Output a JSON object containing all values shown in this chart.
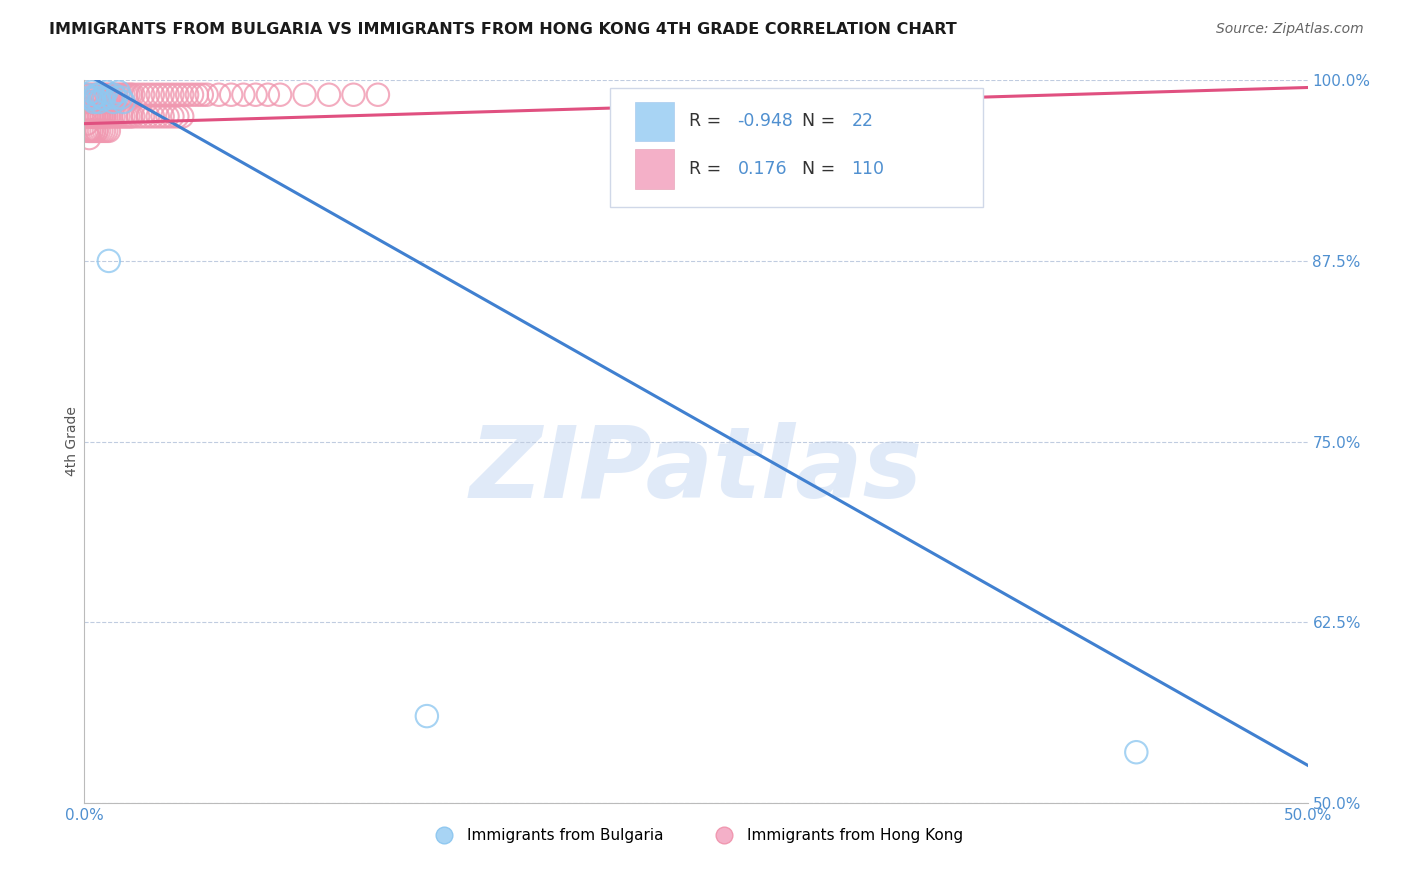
{
  "title": "IMMIGRANTS FROM BULGARIA VS IMMIGRANTS FROM HONG KONG 4TH GRADE CORRELATION CHART",
  "source": "Source: ZipAtlas.com",
  "ylabel": "4th Grade",
  "x_min": 0.0,
  "x_max": 0.5,
  "y_min": 0.5,
  "y_max": 1.0,
  "y_ticks": [
    0.5,
    0.625,
    0.75,
    0.875,
    1.0
  ],
  "y_tick_labels": [
    "50.0%",
    "62.5%",
    "75.0%",
    "87.5%",
    "100.0%"
  ],
  "x_ticks": [
    0.0,
    0.1,
    0.2,
    0.3,
    0.4,
    0.5
  ],
  "x_tick_labels": [
    "0.0%",
    "",
    "",
    "",
    "",
    "50.0%"
  ],
  "bulgaria_edge_color": "#90c8f0",
  "hong_kong_edge_color": "#f098b0",
  "blue_line_color": "#4080d0",
  "pink_line_color": "#e05080",
  "bulgaria_legend_fill": "#a8d4f4",
  "hong_kong_legend_fill": "#f4b0c8",
  "bulgaria_R": -0.948,
  "bulgaria_N": 22,
  "hong_kong_R": 0.176,
  "hong_kong_N": 110,
  "watermark_text": "ZIPatlas",
  "watermark_color": "#c8daf4",
  "grid_color": "#c0cce0",
  "accent_color": "#5090d0",
  "bg_color": "#ffffff",
  "legend_border_color": "#d0d8e8",
  "bulgaria_points_x": [
    0.001,
    0.002,
    0.003,
    0.003,
    0.004,
    0.004,
    0.005,
    0.006,
    0.006,
    0.007,
    0.008,
    0.009,
    0.01,
    0.011,
    0.012,
    0.012,
    0.013,
    0.014,
    0.015,
    0.016,
    0.14,
    0.43
  ],
  "bulgaria_points_y": [
    0.99,
    0.988,
    0.987,
    0.992,
    0.988,
    0.985,
    0.99,
    0.985,
    0.99,
    0.988,
    0.987,
    0.992,
    0.875,
    0.988,
    0.99,
    0.985,
    0.988,
    0.992,
    0.988,
    0.985,
    0.56,
    0.535
  ],
  "hong_kong_points_x": [
    0.001,
    0.001,
    0.001,
    0.002,
    0.002,
    0.002,
    0.002,
    0.002,
    0.003,
    0.003,
    0.003,
    0.003,
    0.004,
    0.004,
    0.004,
    0.004,
    0.005,
    0.005,
    0.005,
    0.005,
    0.006,
    0.006,
    0.006,
    0.007,
    0.007,
    0.007,
    0.008,
    0.008,
    0.008,
    0.009,
    0.009,
    0.01,
    0.01,
    0.011,
    0.011,
    0.012,
    0.012,
    0.013,
    0.014,
    0.015,
    0.016,
    0.017,
    0.018,
    0.019,
    0.02,
    0.022,
    0.024,
    0.026,
    0.028,
    0.03,
    0.032,
    0.034,
    0.036,
    0.038,
    0.04,
    0.042,
    0.044,
    0.046,
    0.048,
    0.05,
    0.055,
    0.06,
    0.065,
    0.07,
    0.075,
    0.08,
    0.09,
    0.1,
    0.11,
    0.12,
    0.001,
    0.001,
    0.002,
    0.002,
    0.003,
    0.003,
    0.004,
    0.004,
    0.005,
    0.005,
    0.006,
    0.006,
    0.007,
    0.007,
    0.008,
    0.008,
    0.009,
    0.009,
    0.01,
    0.01,
    0.011,
    0.012,
    0.013,
    0.014,
    0.015,
    0.016,
    0.017,
    0.018,
    0.019,
    0.02,
    0.022,
    0.024,
    0.026,
    0.028,
    0.03,
    0.032,
    0.034,
    0.036,
    0.038,
    0.04
  ],
  "hong_kong_points_y": [
    0.99,
    0.98,
    0.97,
    0.99,
    0.985,
    0.975,
    0.965,
    0.96,
    0.99,
    0.985,
    0.975,
    0.965,
    0.99,
    0.985,
    0.975,
    0.965,
    0.99,
    0.985,
    0.975,
    0.965,
    0.99,
    0.985,
    0.975,
    0.99,
    0.985,
    0.975,
    0.99,
    0.985,
    0.975,
    0.99,
    0.985,
    0.99,
    0.985,
    0.99,
    0.985,
    0.99,
    0.985,
    0.99,
    0.99,
    0.99,
    0.99,
    0.99,
    0.99,
    0.99,
    0.99,
    0.99,
    0.99,
    0.99,
    0.99,
    0.99,
    0.99,
    0.99,
    0.99,
    0.99,
    0.99,
    0.99,
    0.99,
    0.99,
    0.99,
    0.99,
    0.99,
    0.99,
    0.99,
    0.99,
    0.99,
    0.99,
    0.99,
    0.99,
    0.99,
    0.99,
    0.975,
    0.965,
    0.975,
    0.965,
    0.975,
    0.965,
    0.975,
    0.965,
    0.975,
    0.965,
    0.975,
    0.965,
    0.975,
    0.965,
    0.975,
    0.965,
    0.975,
    0.965,
    0.975,
    0.965,
    0.975,
    0.975,
    0.975,
    0.975,
    0.975,
    0.975,
    0.975,
    0.975,
    0.975,
    0.975,
    0.975,
    0.975,
    0.975,
    0.975,
    0.975,
    0.975,
    0.975,
    0.975,
    0.975,
    0.975
  ],
  "bg_line_x0": 0.0,
  "bg_line_y0": 1.005,
  "bg_line_x1": 0.5,
  "bg_line_y1": 0.526,
  "hk_line_x0": 0.0,
  "hk_line_y0": 0.97,
  "hk_line_x1": 0.5,
  "hk_line_y1": 0.995
}
